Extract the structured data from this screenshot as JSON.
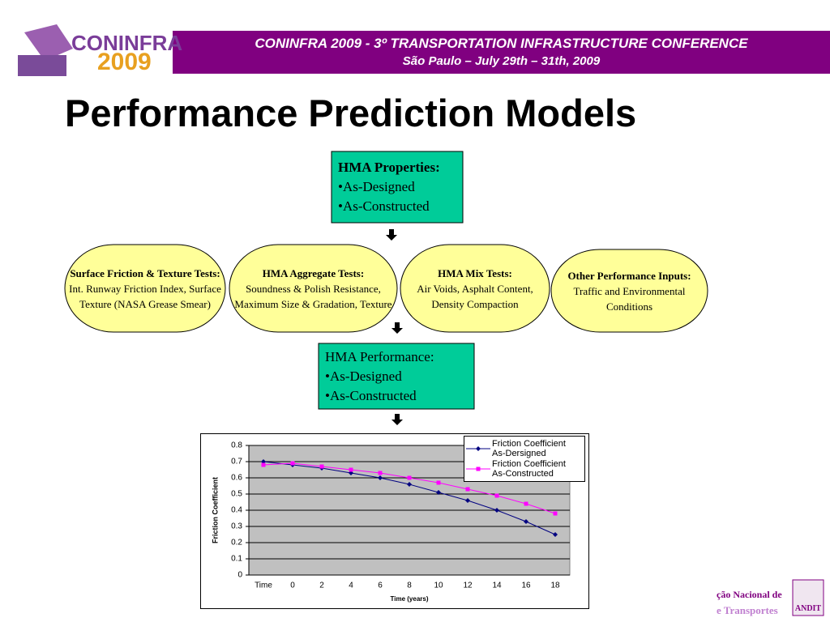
{
  "header": {
    "logo": [
      "CONINFRA",
      "2009"
    ],
    "line1": "CONINFRA 2009 - 3º TRANSPORTATION INFRASTRUCTURE CONFERENCE",
    "line2": "São Paulo – July 29th – 31th, 2009"
  },
  "title": "Performance Prediction Models",
  "nodes": [
    {
      "heading": "HMA Properties:",
      "items": [
        "•As-Designed",
        "•As-Constructed"
      ]
    },
    {
      "heading": "Surface Friction & Texture Tests:",
      "body": "Int. Runway Friction Index, Surface Texture (NASA Grease Smear)"
    },
    {
      "heading": "HMA Aggregate Tests:",
      "body": "Soundness & Polish Resistance, Maximum Size & Gradation, Texture"
    },
    {
      "heading": "HMA Mix Tests:",
      "body": "Air Voids, Asphalt Content, Density Compaction"
    },
    {
      "heading": "Other Performance Inputs:",
      "body": "Traffic and Environmental Conditions"
    },
    {
      "heading": "HMA Performance:",
      "items": [
        "•As-Designed",
        "•As-Constructed"
      ]
    }
  ],
  "footer_logo": [
    "ção Nacional de",
    "e Transportes",
    "ANDIT"
  ],
  "chart_data": {
    "type": "line",
    "xlabel": "Time (years)",
    "ylabel": "Friction Coefficient",
    "categories": [
      "Time",
      "0",
      "2",
      "4",
      "6",
      "8",
      "10",
      "12",
      "14",
      "16",
      "18"
    ],
    "series": [
      {
        "name": "Friction Coefficient As-Dersigned",
        "color": "#000080",
        "marker": "diamond",
        "values": [
          0.7,
          0.68,
          0.66,
          0.63,
          0.6,
          0.56,
          0.51,
          0.46,
          0.4,
          0.33,
          0.25
        ]
      },
      {
        "name": "Friction Coefficient As-Constructed",
        "color": "#ff00ff",
        "marker": "square",
        "values": [
          0.68,
          0.69,
          0.67,
          0.65,
          0.63,
          0.6,
          0.57,
          0.53,
          0.49,
          0.44,
          0.38
        ]
      }
    ],
    "ylim": [
      0,
      0.8
    ],
    "yticks": [
      0,
      0.1,
      0.2,
      0.3,
      0.4,
      0.5,
      0.6,
      0.7,
      0.8
    ],
    "grid": true,
    "legend": "top-right",
    "plot_background": "#c0c0c0"
  }
}
